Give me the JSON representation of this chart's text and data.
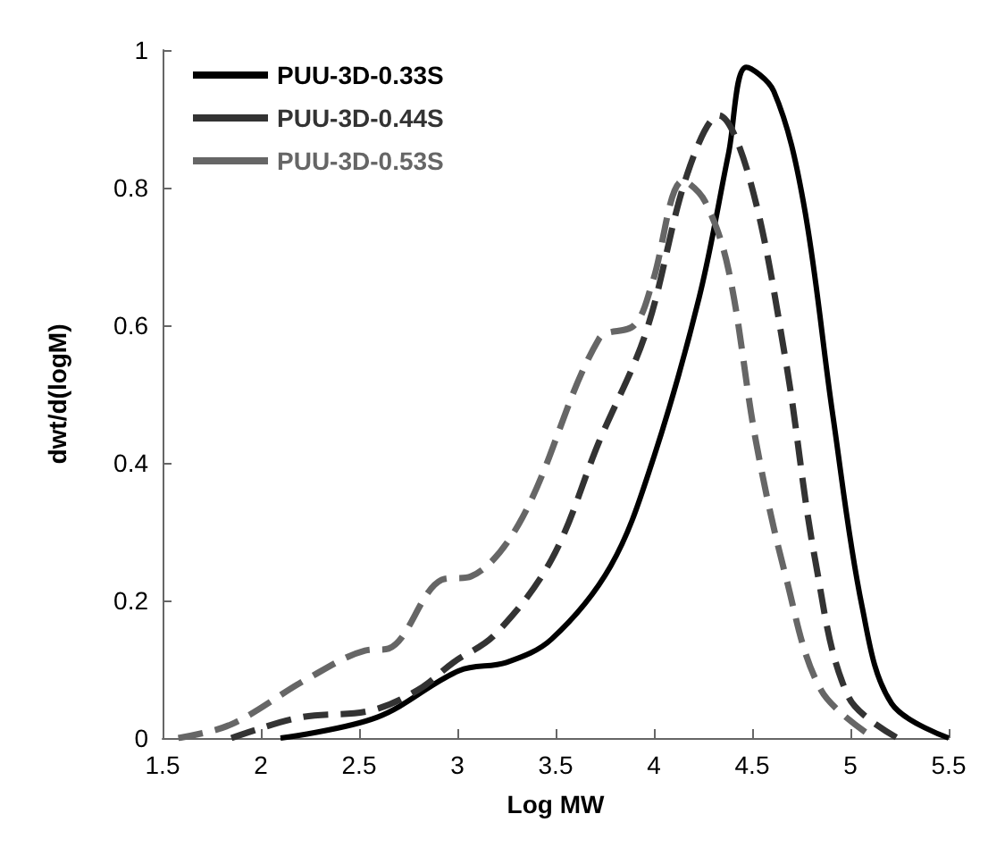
{
  "chart_data": {
    "type": "line",
    "xlabel": "Log MW",
    "ylabel": "dwt/d(logM)",
    "xlim": [
      1.5,
      5.5
    ],
    "xticks": [
      1.5,
      2,
      2.5,
      3,
      3.5,
      4,
      4.5,
      5,
      5.5
    ],
    "ylim": [
      0,
      1
    ],
    "yticks": [
      0,
      0.2,
      0.4,
      0.6,
      0.8,
      1
    ],
    "grid": false,
    "legend": "top left",
    "marker": "none",
    "series": [
      {
        "name": "PUU-3D-0.33S",
        "color": "#000000",
        "line_style": "solid",
        "x": [
          2.1,
          2.59,
          3.01,
          3.25,
          3.48,
          3.78,
          3.99,
          4.23,
          4.38,
          4.47,
          4.61,
          4.76,
          4.91,
          5.06,
          5.21,
          5.5
        ],
        "values": [
          0,
          0.03,
          0.098,
          0.11,
          0.144,
          0.25,
          0.4,
          0.64,
          0.85,
          0.975,
          0.94,
          0.78,
          0.47,
          0.19,
          0.05,
          0
        ]
      },
      {
        "name": "PUU-3D-0.44S",
        "color": "#333333",
        "line_style": "dashed",
        "x": [
          1.85,
          2.2,
          2.56,
          2.8,
          2.98,
          3.19,
          3.48,
          3.72,
          3.96,
          4.17,
          4.33,
          4.49,
          4.67,
          4.82,
          4.99,
          5.24
        ],
        "values": [
          0,
          0.03,
          0.04,
          0.07,
          0.11,
          0.15,
          0.26,
          0.43,
          0.59,
          0.82,
          0.905,
          0.81,
          0.55,
          0.26,
          0.06,
          0
        ]
      },
      {
        "name": "PUU-3D-0.53S",
        "color": "#666666",
        "line_style": "dashed",
        "x": [
          1.58,
          1.85,
          2.23,
          2.53,
          2.65,
          2.92,
          3.07,
          3.33,
          3.72,
          3.9,
          3.99,
          4.15,
          4.26,
          4.38,
          4.52,
          4.67,
          4.85,
          5.12
        ],
        "values": [
          0,
          0.02,
          0.085,
          0.127,
          0.13,
          0.23,
          0.235,
          0.32,
          0.58,
          0.6,
          0.66,
          0.81,
          0.78,
          0.68,
          0.43,
          0.236,
          0.07,
          0
        ]
      }
    ]
  }
}
